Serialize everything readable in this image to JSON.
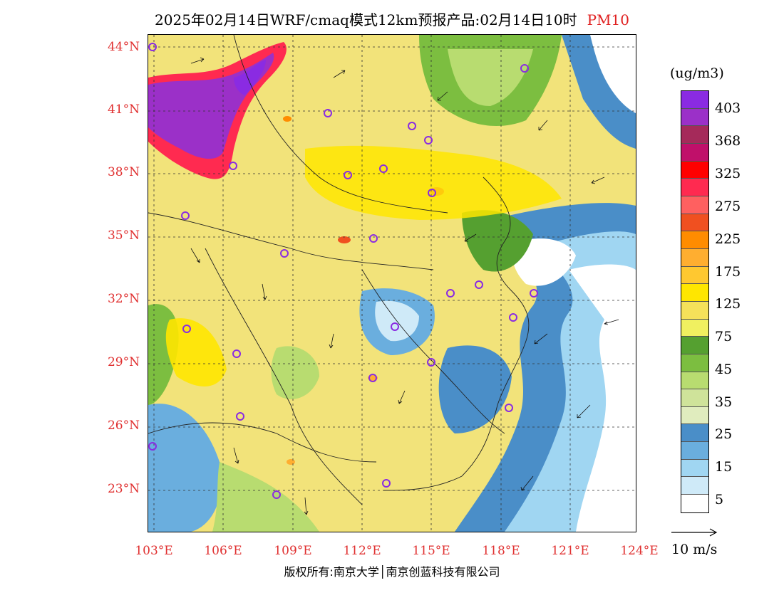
{
  "title": {
    "text": "2025年02月14日WRF/cmaq模式12km预报产品:02月14日10时",
    "variable": "PM10",
    "variable_color": "#e02020"
  },
  "map": {
    "lat_labels": [
      "44°N",
      "41°N",
      "38°N",
      "35°N",
      "32°N",
      "29°N",
      "26°N",
      "23°N"
    ],
    "lon_labels": [
      "103°E",
      "106°E",
      "109°E",
      "112°E",
      "115°E",
      "118°E",
      "121°E",
      "124°E"
    ],
    "label_color": "#e03030",
    "lat_range": [
      21.0,
      44.4
    ],
    "lon_range": [
      102.8,
      124.8
    ]
  },
  "colorbar": {
    "unit": "(ug/m3)",
    "colors": [
      "#8a2be2",
      "#9b30c8",
      "#a52a5a",
      "#c0106a",
      "#ff0000",
      "#ff2a50",
      "#ff6060",
      "#f05020",
      "#ff8c00",
      "#ffae30",
      "#ffc830",
      "#ffe600",
      "#f5e15a",
      "#f0f060",
      "#55a030",
      "#7cbe40",
      "#b8dc70",
      "#cfe39a",
      "#e0ecbe",
      "#4a8ec8",
      "#6aaede",
      "#a0d6f2",
      "#cfeaf8",
      "#ffffff"
    ],
    "labels": [
      "403",
      "368",
      "325",
      "275",
      "225",
      "175",
      "125",
      "75",
      "45",
      "35",
      "25",
      "15",
      "5"
    ]
  },
  "wind_reference": {
    "label": "10 m/s"
  },
  "copyright": "版权所有:南京大学│南京创蓝科技有限公司"
}
